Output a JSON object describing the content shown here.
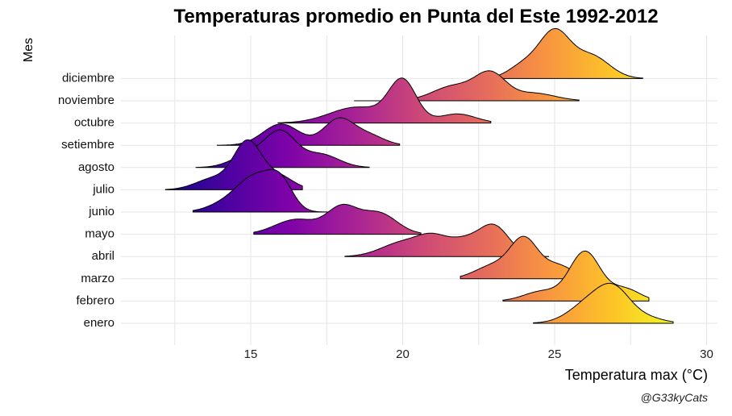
{
  "chart_data": {
    "type": "ridgeline",
    "title": "Temperaturas promedio en Punta del Este 1992-2012",
    "xlabel": "Temperatura max (°C)",
    "ylabel": "Mes",
    "caption": "@G33kyCats",
    "xlim": [
      10.5,
      30.3
    ],
    "xticks": [
      15,
      20,
      25,
      30
    ],
    "grid": true,
    "colormap": "plasma",
    "colormap_range": [
      12,
      29
    ],
    "categories": [
      "enero",
      "febrero",
      "marzo",
      "abril",
      "mayo",
      "junio",
      "julio",
      "agosto",
      "setiembre",
      "octubre",
      "noviembre",
      "diciembre"
    ],
    "series": [
      {
        "name": "enero",
        "range": [
          24.3,
          28.9
        ],
        "peaks": [
          {
            "x": 26.3,
            "h": 0.8,
            "sd": 0.7
          },
          {
            "x": 27.0,
            "h": 0.7,
            "sd": 0.5
          },
          {
            "x": 27.9,
            "h": 0.2,
            "sd": 0.6
          }
        ]
      },
      {
        "name": "febrero",
        "range": [
          23.3,
          28.1
        ],
        "peaks": [
          {
            "x": 24.6,
            "h": 0.2,
            "sd": 0.6
          },
          {
            "x": 26.0,
            "h": 1.0,
            "sd": 0.5
          },
          {
            "x": 27.3,
            "h": 0.25,
            "sd": 0.5
          }
        ]
      },
      {
        "name": "marzo",
        "range": [
          21.9,
          26.4
        ],
        "peaks": [
          {
            "x": 23.0,
            "h": 0.3,
            "sd": 0.6
          },
          {
            "x": 24.0,
            "h": 0.85,
            "sd": 0.45
          },
          {
            "x": 25.1,
            "h": 0.3,
            "sd": 0.5
          }
        ]
      },
      {
        "name": "abril",
        "range": [
          18.1,
          24.8
        ],
        "peaks": [
          {
            "x": 20.0,
            "h": 0.3,
            "sd": 0.7
          },
          {
            "x": 21.0,
            "h": 0.35,
            "sd": 0.5
          },
          {
            "x": 23.0,
            "h": 0.65,
            "sd": 0.5
          },
          {
            "x": 22.0,
            "h": 0.3,
            "sd": 0.5
          }
        ]
      },
      {
        "name": "mayo",
        "range": [
          15.1,
          20.6
        ],
        "peaks": [
          {
            "x": 16.5,
            "h": 0.35,
            "sd": 0.7
          },
          {
            "x": 18.0,
            "h": 0.6,
            "sd": 0.5
          },
          {
            "x": 19.2,
            "h": 0.5,
            "sd": 0.6
          }
        ]
      },
      {
        "name": "junio",
        "range": [
          13.1,
          17.6
        ],
        "peaks": [
          {
            "x": 15.2,
            "h": 0.85,
            "sd": 0.6
          },
          {
            "x": 16.0,
            "h": 0.6,
            "sd": 0.4
          },
          {
            "x": 14.2,
            "h": 0.2,
            "sd": 0.6
          }
        ]
      },
      {
        "name": "julio",
        "range": [
          12.2,
          16.7
        ],
        "peaks": [
          {
            "x": 14.9,
            "h": 1.0,
            "sd": 0.45
          },
          {
            "x": 13.8,
            "h": 0.25,
            "sd": 0.6
          },
          {
            "x": 15.9,
            "h": 0.3,
            "sd": 0.5
          }
        ]
      },
      {
        "name": "agosto",
        "range": [
          13.2,
          18.9
        ],
        "peaks": [
          {
            "x": 16.0,
            "h": 0.75,
            "sd": 0.5
          },
          {
            "x": 15.0,
            "h": 0.3,
            "sd": 0.6
          },
          {
            "x": 17.3,
            "h": 0.3,
            "sd": 0.6
          }
        ]
      },
      {
        "name": "setiembre",
        "range": [
          13.9,
          19.9
        ],
        "peaks": [
          {
            "x": 16.0,
            "h": 0.45,
            "sd": 0.6
          },
          {
            "x": 17.9,
            "h": 0.55,
            "sd": 0.5
          },
          {
            "x": 18.9,
            "h": 0.2,
            "sd": 0.5
          }
        ]
      },
      {
        "name": "octubre",
        "range": [
          15.9,
          22.9
        ],
        "peaks": [
          {
            "x": 18.5,
            "h": 0.35,
            "sd": 0.9
          },
          {
            "x": 20.0,
            "h": 0.9,
            "sd": 0.45
          },
          {
            "x": 21.8,
            "h": 0.2,
            "sd": 0.6
          }
        ]
      },
      {
        "name": "noviembre",
        "range": [
          18.4,
          25.8
        ],
        "peaks": [
          {
            "x": 21.7,
            "h": 0.35,
            "sd": 0.7
          },
          {
            "x": 22.9,
            "h": 0.6,
            "sd": 0.5
          },
          {
            "x": 24.3,
            "h": 0.18,
            "sd": 0.7
          }
        ]
      },
      {
        "name": "diciembre",
        "range": [
          22.4,
          27.9
        ],
        "peaks": [
          {
            "x": 25.0,
            "h": 1.0,
            "sd": 0.5
          },
          {
            "x": 24.0,
            "h": 0.3,
            "sd": 0.5
          },
          {
            "x": 26.2,
            "h": 0.5,
            "sd": 0.6
          }
        ]
      }
    ]
  }
}
